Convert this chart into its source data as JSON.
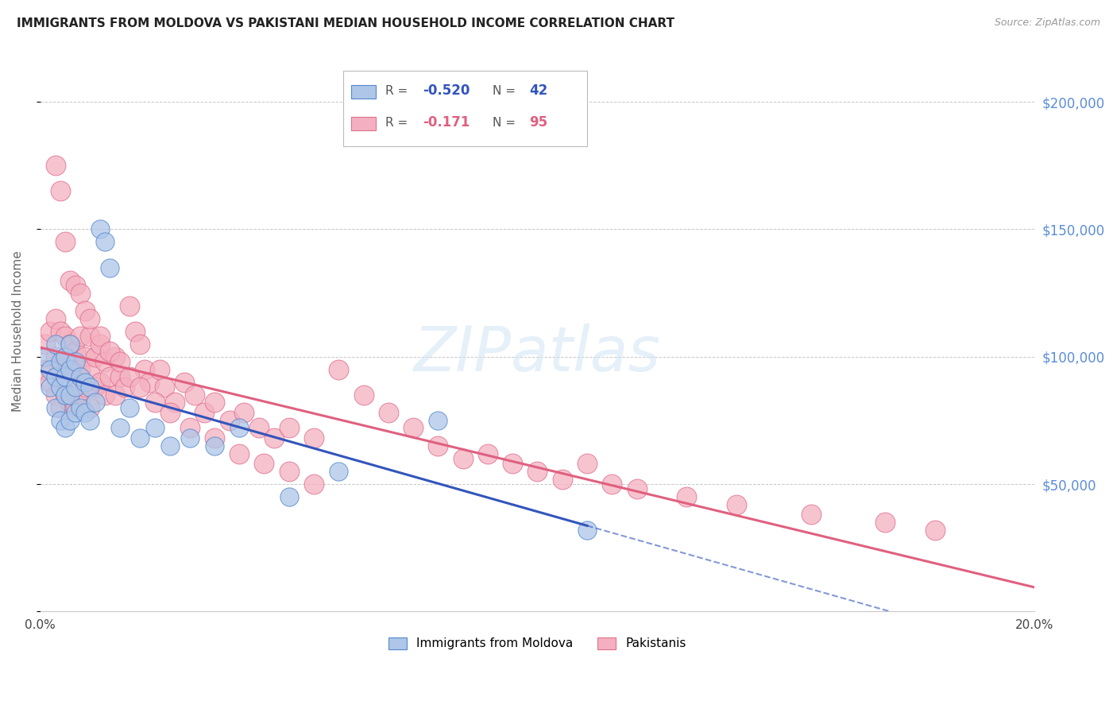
{
  "title": "IMMIGRANTS FROM MOLDOVA VS PAKISTANI MEDIAN HOUSEHOLD INCOME CORRELATION CHART",
  "source": "Source: ZipAtlas.com",
  "ylabel": "Median Household Income",
  "xlim": [
    0.0,
    0.2
  ],
  "ylim": [
    0,
    220000
  ],
  "background_color": "#ffffff",
  "grid_color": "#c8c8c8",
  "right_tick_color": "#5b8dd9",
  "moldova_color": "#aec6e8",
  "moldova_edge_color": "#5588cc",
  "pakistan_color": "#f4b0c0",
  "pakistan_edge_color": "#e07090",
  "moldova_line_color": "#3355bb",
  "pakistan_line_color": "#e06080",
  "watermark_text": "ZIPatlas",
  "legend_moldova_R": "-0.520",
  "legend_moldova_N": "42",
  "legend_pakistan_R": "-0.171",
  "legend_pakistan_N": "95",
  "legend_label_moldova": "Immigrants from Moldova",
  "legend_label_pakistan": "Pakistanis",
  "moldova_x": [
    0.001,
    0.002,
    0.002,
    0.003,
    0.003,
    0.003,
    0.004,
    0.004,
    0.004,
    0.005,
    0.005,
    0.005,
    0.005,
    0.006,
    0.006,
    0.006,
    0.006,
    0.007,
    0.007,
    0.007,
    0.008,
    0.008,
    0.009,
    0.009,
    0.01,
    0.01,
    0.011,
    0.012,
    0.013,
    0.014,
    0.016,
    0.018,
    0.02,
    0.023,
    0.026,
    0.03,
    0.035,
    0.04,
    0.05,
    0.06,
    0.08,
    0.11
  ],
  "moldova_y": [
    100000,
    95000,
    88000,
    105000,
    92000,
    80000,
    98000,
    88000,
    75000,
    100000,
    92000,
    85000,
    72000,
    105000,
    95000,
    85000,
    75000,
    98000,
    88000,
    78000,
    92000,
    80000,
    90000,
    78000,
    88000,
    75000,
    82000,
    150000,
    145000,
    135000,
    72000,
    80000,
    68000,
    72000,
    65000,
    68000,
    65000,
    72000,
    45000,
    55000,
    75000,
    32000
  ],
  "pakistan_x": [
    0.001,
    0.001,
    0.002,
    0.002,
    0.003,
    0.003,
    0.003,
    0.004,
    0.004,
    0.004,
    0.005,
    0.005,
    0.005,
    0.006,
    0.006,
    0.006,
    0.007,
    0.007,
    0.007,
    0.008,
    0.008,
    0.008,
    0.009,
    0.009,
    0.01,
    0.01,
    0.01,
    0.011,
    0.011,
    0.012,
    0.012,
    0.013,
    0.013,
    0.014,
    0.015,
    0.015,
    0.016,
    0.017,
    0.018,
    0.019,
    0.02,
    0.021,
    0.022,
    0.024,
    0.025,
    0.027,
    0.029,
    0.031,
    0.033,
    0.035,
    0.038,
    0.041,
    0.044,
    0.047,
    0.05,
    0.055,
    0.06,
    0.065,
    0.07,
    0.075,
    0.08,
    0.085,
    0.09,
    0.095,
    0.1,
    0.105,
    0.11,
    0.115,
    0.12,
    0.13,
    0.14,
    0.155,
    0.17,
    0.18,
    0.003,
    0.004,
    0.005,
    0.006,
    0.007,
    0.008,
    0.009,
    0.01,
    0.012,
    0.014,
    0.016,
    0.018,
    0.02,
    0.023,
    0.026,
    0.03,
    0.035,
    0.04,
    0.045,
    0.05,
    0.055
  ],
  "pakistan_y": [
    105000,
    95000,
    110000,
    90000,
    115000,
    100000,
    85000,
    110000,
    95000,
    80000,
    108000,
    98000,
    85000,
    105000,
    95000,
    82000,
    102000,
    92000,
    80000,
    108000,
    95000,
    82000,
    100000,
    88000,
    108000,
    95000,
    80000,
    100000,
    88000,
    105000,
    90000,
    98000,
    85000,
    92000,
    100000,
    85000,
    92000,
    88000,
    120000,
    110000,
    105000,
    95000,
    90000,
    95000,
    88000,
    82000,
    90000,
    85000,
    78000,
    82000,
    75000,
    78000,
    72000,
    68000,
    72000,
    68000,
    95000,
    85000,
    78000,
    72000,
    65000,
    60000,
    62000,
    58000,
    55000,
    52000,
    58000,
    50000,
    48000,
    45000,
    42000,
    38000,
    35000,
    32000,
    175000,
    165000,
    145000,
    130000,
    128000,
    125000,
    118000,
    115000,
    108000,
    102000,
    98000,
    92000,
    88000,
    82000,
    78000,
    72000,
    68000,
    62000,
    58000,
    55000,
    50000
  ]
}
